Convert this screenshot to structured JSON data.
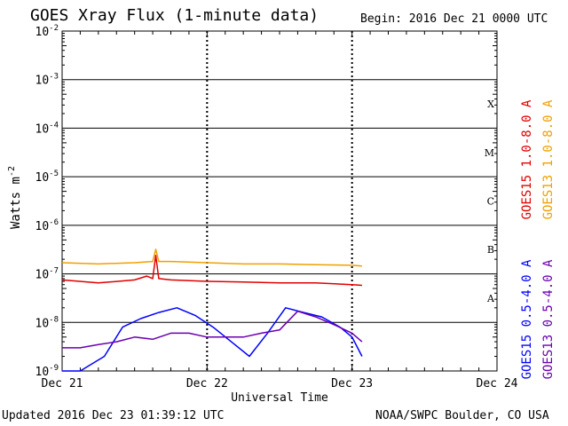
{
  "header": {
    "title": "GOES Xray Flux (1-minute data)",
    "begin": "Begin:  2016 Dec 21 0000 UTC"
  },
  "footer": {
    "updated": "Updated 2016 Dec 23 01:39:12 UTC",
    "credit": "NOAA/SWPC Boulder, CO USA"
  },
  "colors": {
    "goes15_long": "#e00000",
    "goes13_long": "#f0a000",
    "goes15_short": "#0000ff",
    "goes13_short": "#6a00b0"
  },
  "chart_data": {
    "type": "line",
    "title": "GOES Xray Flux (1-minute data)",
    "xlabel": "Universal Time",
    "ylabel": "Watts m",
    "ylabel_sup": "-2",
    "y_scale": "log",
    "ylim": [
      1e-09,
      0.01
    ],
    "xlim": [
      "2016-12-21T00:00",
      "2016-12-24T00:00"
    ],
    "x_ticks": [
      "Dec 21",
      "Dec 22",
      "Dec 23",
      "Dec 24"
    ],
    "y_ticks": [
      {
        "mantissa": "10",
        "exp": "-9"
      },
      {
        "mantissa": "10",
        "exp": "-8"
      },
      {
        "mantissa": "10",
        "exp": "-7"
      },
      {
        "mantissa": "10",
        "exp": "-6"
      },
      {
        "mantissa": "10",
        "exp": "-5"
      },
      {
        "mantissa": "10",
        "exp": "-4"
      },
      {
        "mantissa": "10",
        "exp": "-3"
      },
      {
        "mantissa": "10",
        "exp": "-2"
      }
    ],
    "flare_classes": [
      "A",
      "B",
      "C",
      "M",
      "X"
    ],
    "grid": true,
    "legend": [
      "GOES15 1.0-8.0 A",
      "GOES13 1.0-8.0 A",
      "GOES15 0.5-4.0 A",
      "GOES13 0.5-4.0 A"
    ],
    "series": [
      {
        "name": "GOES15 1.0-8.0 A",
        "x": [
          "2016-12-21T00:00",
          "2016-12-21T06:00",
          "2016-12-21T12:00",
          "2016-12-21T14:00",
          "2016-12-21T15:00",
          "2016-12-21T15:30",
          "2016-12-21T16:00",
          "2016-12-21T18:00",
          "2016-12-22T00:00",
          "2016-12-22T06:00",
          "2016-12-22T12:00",
          "2016-12-22T18:00",
          "2016-12-23T00:00",
          "2016-12-23T01:39"
        ],
        "y": [
          7.5e-08,
          6.5e-08,
          7.5e-08,
          9e-08,
          8e-08,
          2.4e-07,
          8e-08,
          7.5e-08,
          7e-08,
          6.8e-08,
          6.5e-08,
          6.5e-08,
          6e-08,
          5.8e-08
        ]
      },
      {
        "name": "GOES13 1.0-8.0 A",
        "x": [
          "2016-12-21T00:00",
          "2016-12-21T06:00",
          "2016-12-21T12:00",
          "2016-12-21T15:00",
          "2016-12-21T15:30",
          "2016-12-21T16:00",
          "2016-12-21T18:00",
          "2016-12-22T00:00",
          "2016-12-22T06:00",
          "2016-12-22T12:00",
          "2016-12-22T18:00",
          "2016-12-23T00:00",
          "2016-12-23T01:39"
        ],
        "y": [
          1.7e-07,
          1.6e-07,
          1.7e-07,
          1.8e-07,
          3.2e-07,
          1.8e-07,
          1.8e-07,
          1.7e-07,
          1.6e-07,
          1.6e-07,
          1.55e-07,
          1.5e-07,
          1.45e-07
        ]
      },
      {
        "name": "GOES15 0.5-4.0 A",
        "x": [
          "2016-12-21T00:00",
          "2016-12-21T03:00",
          "2016-12-21T07:00",
          "2016-12-21T10:00",
          "2016-12-21T13:00",
          "2016-12-21T16:00",
          "2016-12-21T19:00",
          "2016-12-21T22:00",
          "2016-12-22T01:00",
          "2016-12-22T04:00",
          "2016-12-22T07:00",
          "2016-12-22T10:00",
          "2016-12-22T13:00",
          "2016-12-22T16:00",
          "2016-12-22T19:00",
          "2016-12-22T22:00",
          "2016-12-23T00:00",
          "2016-12-23T01:39"
        ],
        "y": [
          1e-09,
          1e-09,
          2e-09,
          8e-09,
          1.2e-08,
          1.6e-08,
          2e-08,
          1.4e-08,
          8e-09,
          4e-09,
          2e-09,
          6e-09,
          2e-08,
          1.6e-08,
          1.3e-08,
          8e-09,
          5e-09,
          2e-09
        ]
      },
      {
        "name": "GOES13 0.5-4.0 A",
        "x": [
          "2016-12-21T00:00",
          "2016-12-21T03:00",
          "2016-12-21T06:00",
          "2016-12-21T09:00",
          "2016-12-21T12:00",
          "2016-12-21T15:00",
          "2016-12-21T18:00",
          "2016-12-21T21:00",
          "2016-12-22T00:00",
          "2016-12-22T03:00",
          "2016-12-22T06:00",
          "2016-12-22T09:00",
          "2016-12-22T12:00",
          "2016-12-22T15:00",
          "2016-12-22T18:00",
          "2016-12-22T21:00",
          "2016-12-23T00:00",
          "2016-12-23T01:39"
        ],
        "y": [
          3e-09,
          3e-09,
          3.5e-09,
          4e-09,
          5e-09,
          4.5e-09,
          6e-09,
          6e-09,
          5e-09,
          5e-09,
          5e-09,
          6e-09,
          7e-09,
          1.7e-08,
          1.3e-08,
          9e-09,
          6e-09,
          4e-09
        ]
      }
    ]
  }
}
